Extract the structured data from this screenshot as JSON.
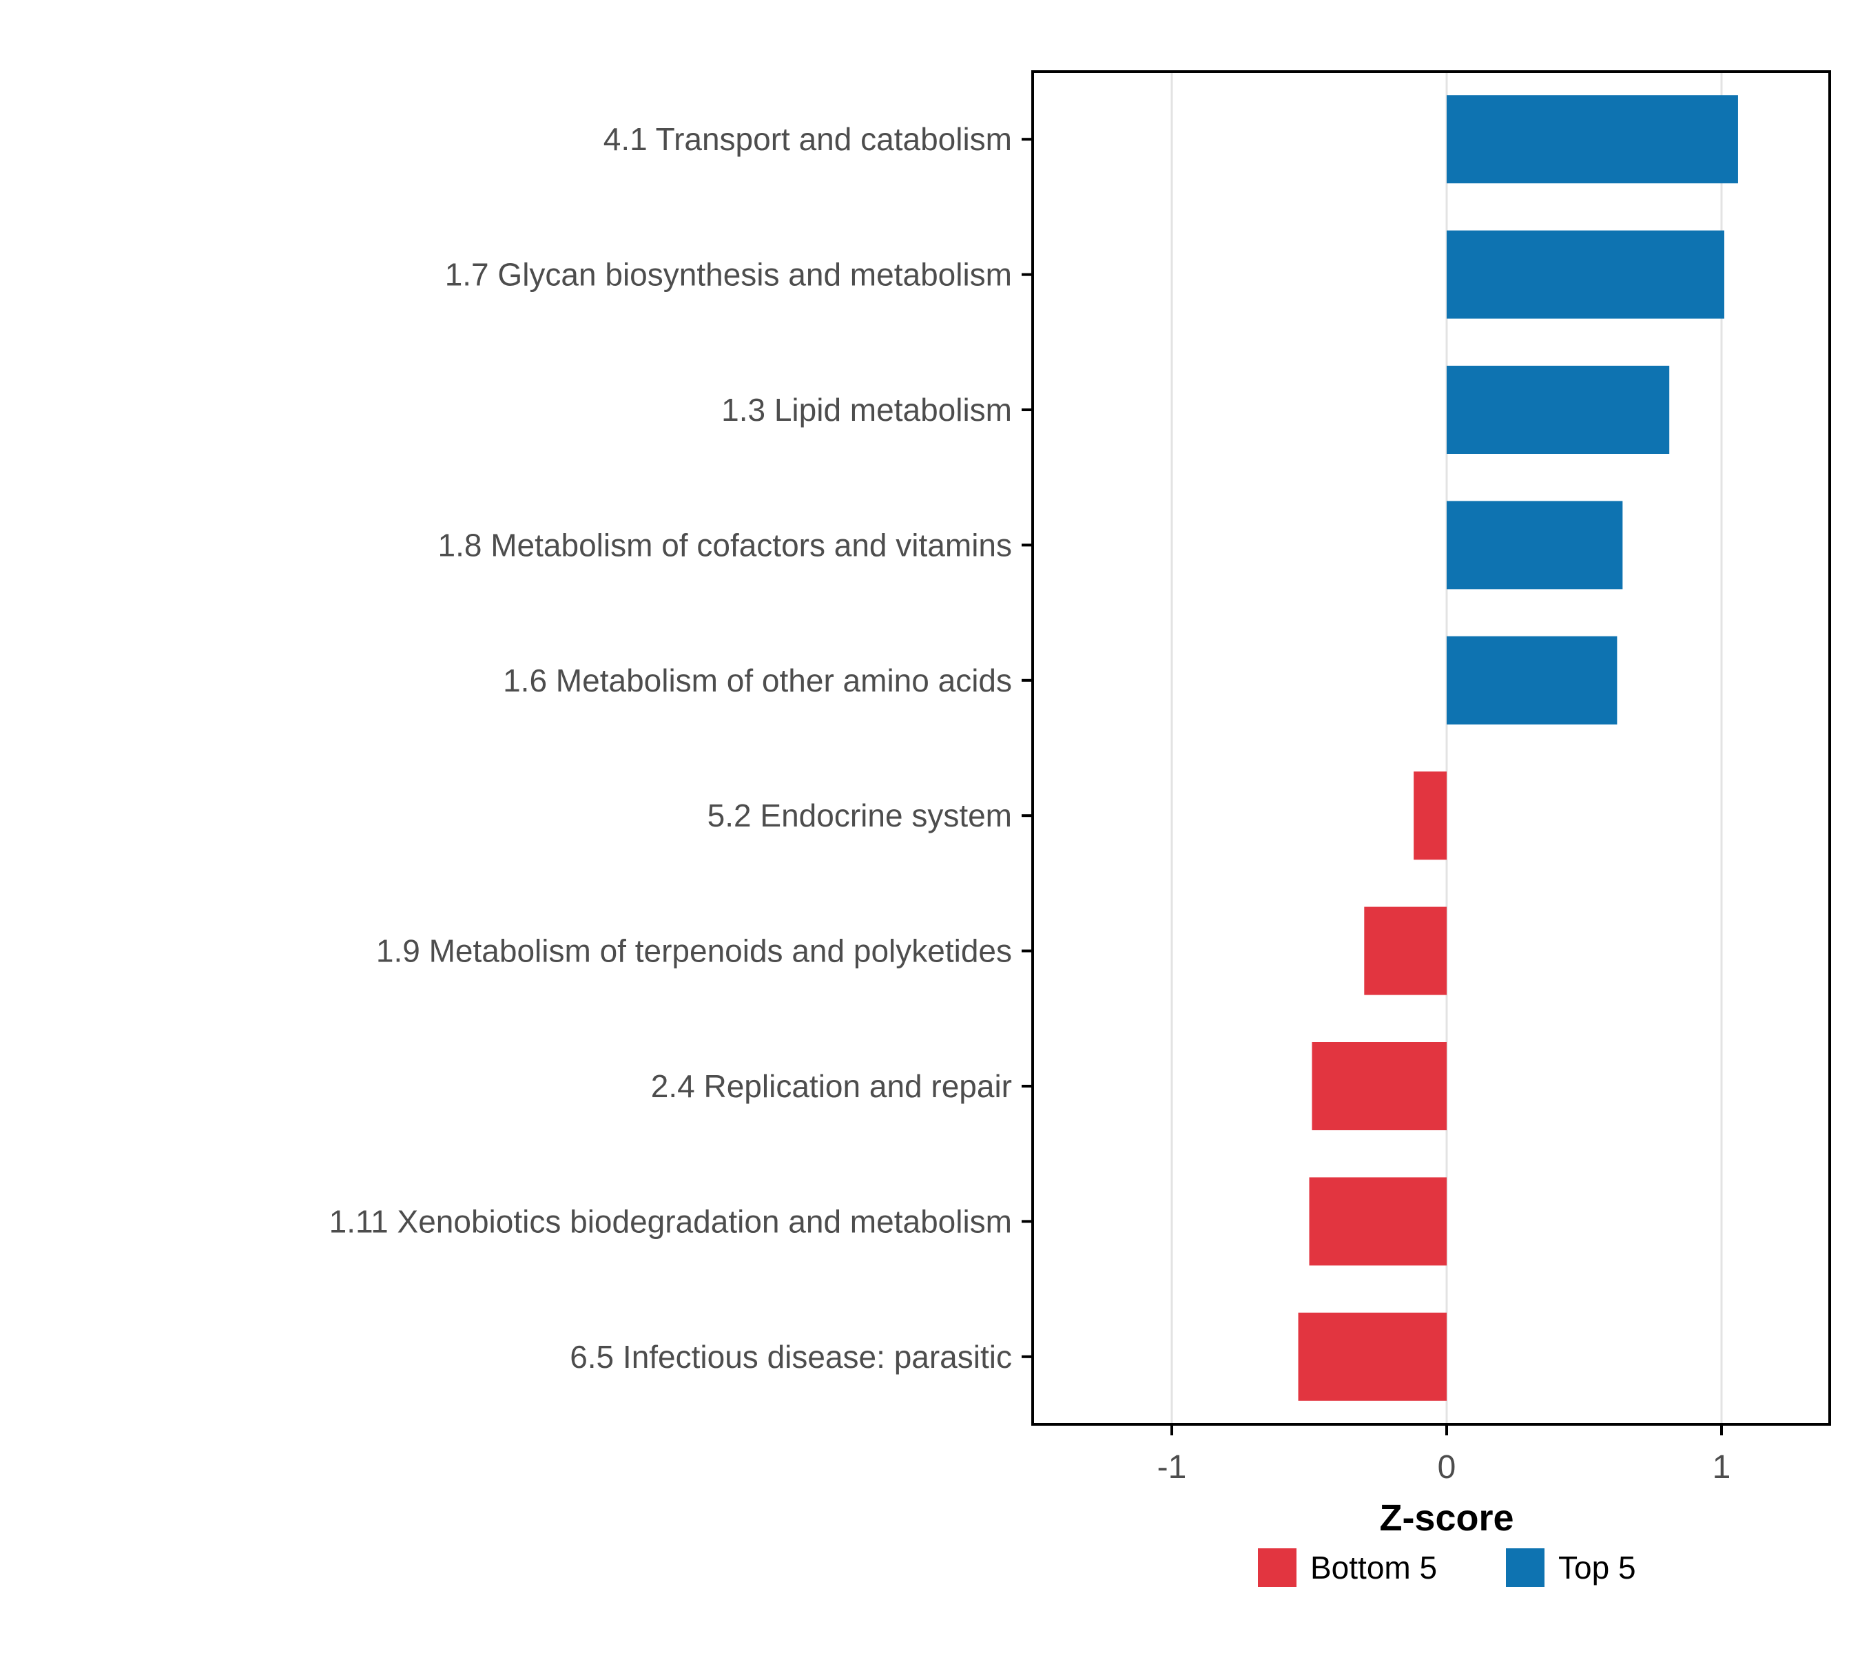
{
  "chart_data": {
    "type": "bar",
    "orientation": "horizontal",
    "title": "",
    "xlabel": "Z-score",
    "ylabel": "",
    "categories": [
      "4.1 Transport and catabolism",
      "1.7 Glycan biosynthesis and metabolism",
      "1.3 Lipid metabolism",
      "1.8 Metabolism of cofactors and vitamins",
      "1.6 Metabolism of other amino acids",
      "5.2 Endocrine system",
      "1.9 Metabolism of terpenoids and polyketides",
      "2.4 Replication and repair",
      "1.11 Xenobiotics biodegradation and metabolism",
      "6.5 Infectious disease: parasitic"
    ],
    "values": [
      1.06,
      1.01,
      0.81,
      0.64,
      0.62,
      -0.12,
      -0.3,
      -0.49,
      -0.5,
      -0.54
    ],
    "bar_groups": [
      "Top 5",
      "Top 5",
      "Top 5",
      "Top 5",
      "Top 5",
      "Bottom 5",
      "Bottom 5",
      "Bottom 5",
      "Bottom 5",
      "Bottom 5"
    ],
    "colors": {
      "Bottom 5": "#E23540",
      "Top 5": "#0E73B1"
    },
    "xtick_labels": [
      "-1",
      "0",
      "1"
    ],
    "xtick_values": [
      -1,
      0,
      1
    ],
    "xlim": [
      -1.51,
      1.39
    ],
    "grid": "vertical major gridlines at -1, 0, 1",
    "panel_border_color": "#000000",
    "gridline_color": "#E3E3E3",
    "axis_text_color": "#4D4D4D",
    "legend": {
      "position": "bottom-right",
      "entries": [
        {
          "label": "Bottom 5",
          "color": "#E23540"
        },
        {
          "label": "Top 5",
          "color": "#0E73B1"
        }
      ]
    }
  }
}
